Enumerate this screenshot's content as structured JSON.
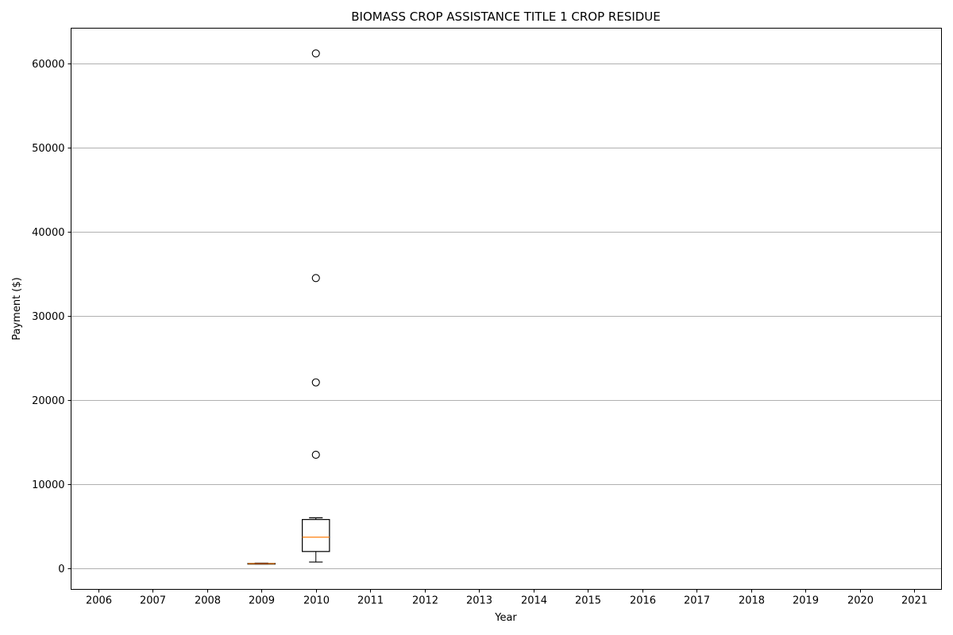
{
  "chart_data": {
    "type": "boxplot",
    "title": "BIOMASS CROP ASSISTANCE TITLE 1 CROP RESIDUE",
    "xlabel": "Year",
    "ylabel": "Payment ($)",
    "categories": [
      "2006",
      "2007",
      "2008",
      "2009",
      "2010",
      "2011",
      "2012",
      "2013",
      "2014",
      "2015",
      "2016",
      "2017",
      "2018",
      "2019",
      "2020",
      "2021"
    ],
    "yticks": [
      0,
      10000,
      20000,
      30000,
      40000,
      50000,
      60000
    ],
    "ylim": [
      -2500,
      64200
    ],
    "grid": "horizontal",
    "boxes": [
      {
        "category": "2009",
        "whislo": 520,
        "q1": 540,
        "med": 560,
        "q3": 580,
        "whishi": 620,
        "fliers": []
      },
      {
        "category": "2010",
        "whislo": 750,
        "q1": 2000,
        "med": 3700,
        "q3": 5800,
        "whishi": 6000,
        "fliers": [
          13500,
          22100,
          34500,
          61200
        ]
      }
    ],
    "colors": {
      "box": "#000000",
      "median": "#ff7f0e",
      "grid": "#b0b0b0"
    }
  }
}
